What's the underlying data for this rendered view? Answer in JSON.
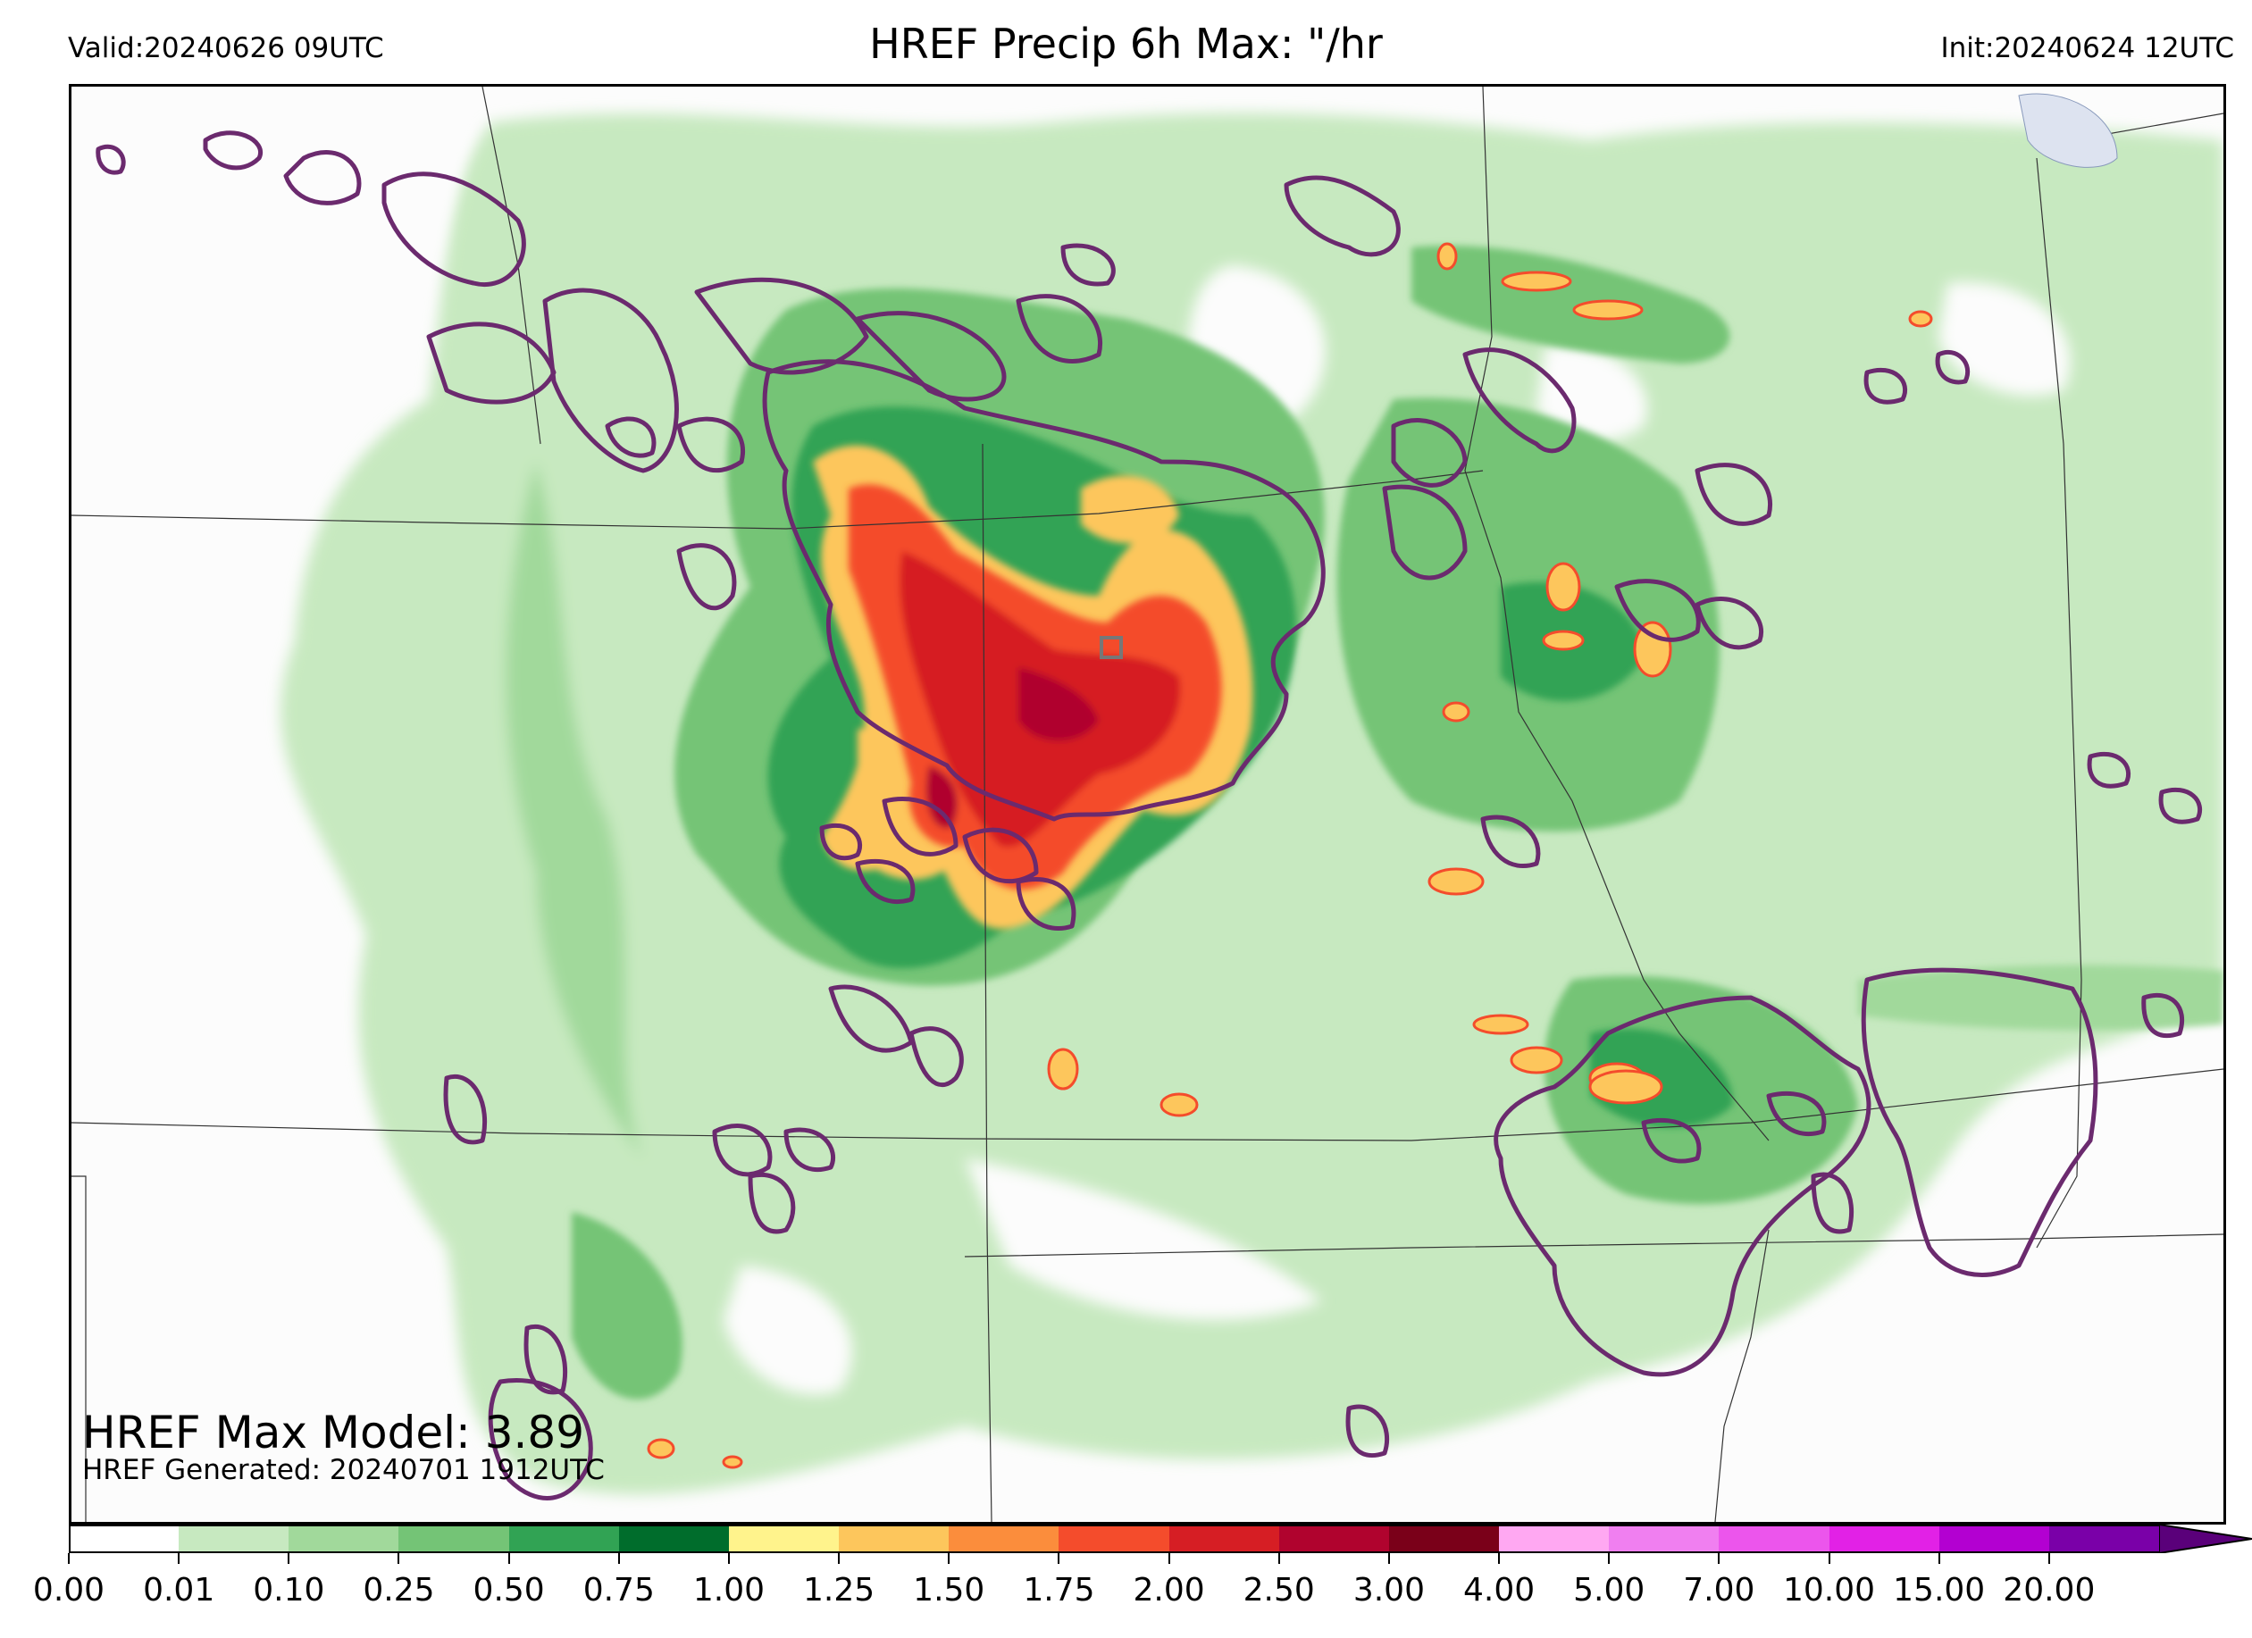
{
  "header": {
    "valid": "Valid:20240626 09UTC",
    "title": "HREF Precip 6h Max: \"/hr",
    "init": "Init:20240624 12UTC"
  },
  "stats": {
    "max_model": "HREF Max Model: 3.89",
    "generated": "HREF Generated: 20240701 1912UTC"
  },
  "colorbar": {
    "ticks": [
      "0.00",
      "0.01",
      "0.10",
      "0.25",
      "0.50",
      "0.75",
      "1.00",
      "1.25",
      "1.50",
      "1.75",
      "2.00",
      "2.50",
      "3.00",
      "4.00",
      "5.00",
      "7.00",
      "10.00",
      "15.00",
      "20.00"
    ],
    "colors": [
      "#ffffff",
      "#c7e9c0",
      "#a1d99b",
      "#74c476",
      "#31a354",
      "#006d2c",
      "#fff38c",
      "#fdc65c",
      "#fb8d3c",
      "#f44c2c",
      "#d61e24",
      "#b0032e",
      "#7a0019",
      "#ffa8f2",
      "#f07ff0",
      "#ec55ec",
      "#e221e6",
      "#b300d1",
      "#7a00a8"
    ],
    "extend_color": "#5a007a"
  },
  "map": {
    "overlay_color": "#6b2a6e",
    "max_marker": "square-marker"
  }
}
